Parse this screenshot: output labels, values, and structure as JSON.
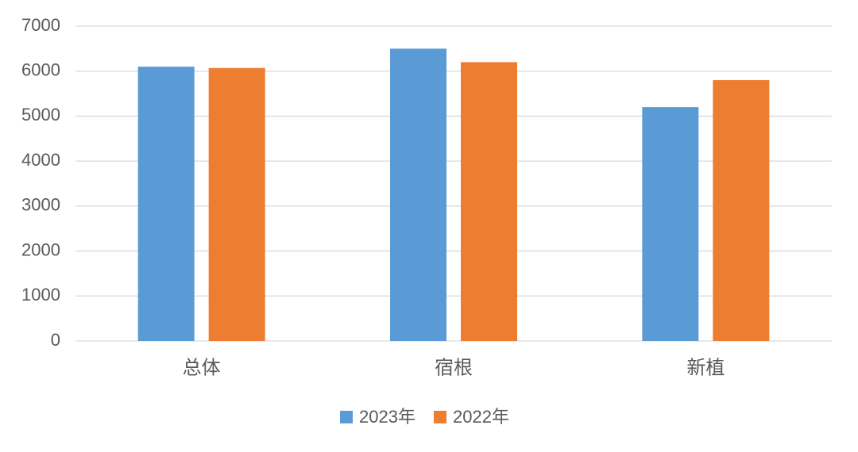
{
  "chart_data": {
    "type": "bar",
    "categories": [
      "总体",
      "宿根",
      "新植"
    ],
    "series": [
      {
        "name": "2023年",
        "color": "#5b9bd5",
        "values": [
          6100,
          6500,
          5200
        ]
      },
      {
        "name": "2022年",
        "color": "#ed7d31",
        "values": [
          6070,
          6200,
          5800
        ]
      }
    ],
    "ylim": [
      0,
      7000
    ],
    "yticks": [
      0,
      1000,
      2000,
      3000,
      4000,
      5000,
      6000,
      7000
    ],
    "grid": true,
    "legend": "bottom"
  }
}
